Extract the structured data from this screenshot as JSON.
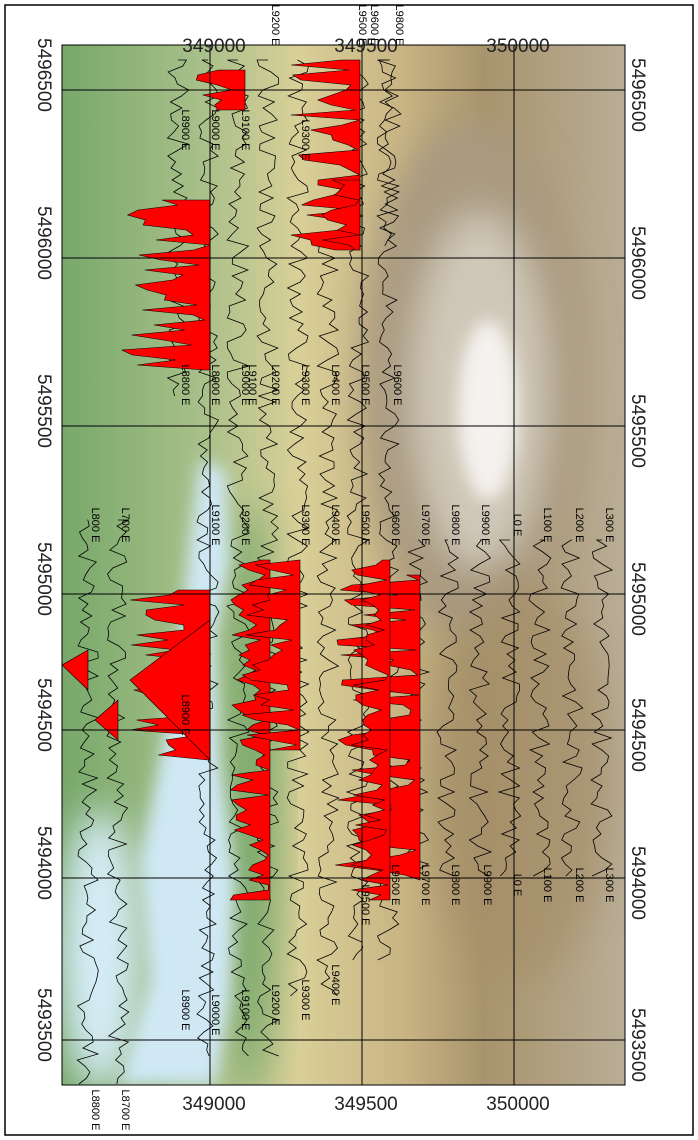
{
  "map": {
    "easting_labels_top": [
      "349000",
      "349500",
      "350000"
    ],
    "easting_labels_bottom": [
      "349000",
      "349500",
      "350000"
    ],
    "northing_labels_left": [
      "5496500",
      "5496000",
      "5495500",
      "5495000",
      "5494500",
      "5494000",
      "5493500"
    ],
    "northing_labels_right": [
      "5496500",
      "5496000",
      "5495500",
      "5495000",
      "5494500",
      "5494000",
      "5493500"
    ],
    "line_labels": [
      "L9200 E",
      "L9500 E",
      "L9600 E",
      "L9800 E",
      "L8900 E",
      "L9000 E",
      "L9100 E",
      "L9300 E",
      "L8800 E",
      "L8900 E",
      "L9000 E",
      "L9100 E",
      "L9200 E",
      "L9300 E",
      "L9400 E",
      "L9500 E",
      "L9600 E",
      "L800 E",
      "L700 E",
      "L9100 E",
      "L9200 E",
      "L9300 E",
      "L9400 E",
      "L9500 E",
      "L9600 E",
      "L9700 E",
      "L9800 E",
      "L9900 E",
      "L0 E",
      "L100 E",
      "L200 E",
      "L300 E",
      "L8900 E",
      "L9500 E",
      "L9600 E",
      "L9700 E",
      "L9800 E",
      "L9900 E",
      "L0 E",
      "L100 E",
      "L200 E",
      "L300 E",
      "L9400 E",
      "L9300 E",
      "L9200 E",
      "L9100 E",
      "L9000 E",
      "L8900 E",
      "L8800 E",
      "L8700 E"
    ]
  }
}
